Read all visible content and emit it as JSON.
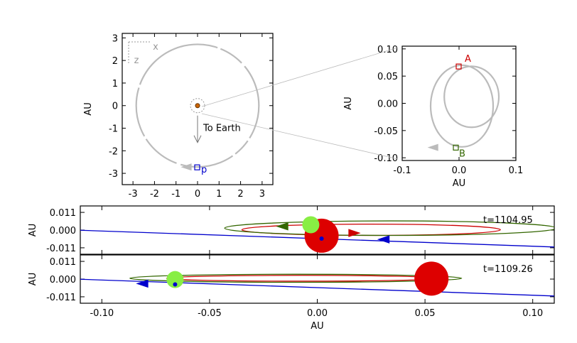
{
  "chart_data": [
    {
      "id": "orbit-wide",
      "type": "scatter",
      "xlabel": "",
      "ylabel": "AU",
      "xlim": [
        -3.5,
        3.5
      ],
      "ylim": [
        -3.5,
        3.2
      ],
      "xticks": [
        "-3",
        "-2",
        "-1",
        "0",
        "1",
        "2",
        "3"
      ],
      "yticks": [
        "3",
        "2",
        "1",
        "0",
        "-1",
        "-2",
        "-3"
      ],
      "axes_indicator": {
        "x": "x",
        "z": "z"
      },
      "orbit": {
        "radius_au": 2.85,
        "color": "#bbbbbb",
        "gap_start_deg": 25,
        "gap_end_deg": 62
      },
      "earth_arrow_label": "To Earth",
      "point": {
        "label": "p",
        "x": 0.0,
        "y": -2.75,
        "color": "#0000cc"
      }
    },
    {
      "id": "orbit-zoom",
      "type": "scatter",
      "xlabel": "AU",
      "ylabel": "AU",
      "xlim": [
        -0.1,
        0.1
      ],
      "ylim": [
        -0.105,
        0.105
      ],
      "xticks": [
        "-0.1",
        "0.0",
        "0.1"
      ],
      "yticks": [
        "0.10",
        "0.05",
        "0.00",
        "-0.05",
        "-0.10"
      ],
      "orbits": [
        {
          "cx": 0.005,
          "cy": -0.005,
          "rx": 0.055,
          "ry": 0.075,
          "color": "#bbbbbb"
        },
        {
          "cx": 0.022,
          "cy": 0.012,
          "rx": 0.048,
          "ry": 0.056,
          "color": "#bbbbbb"
        }
      ],
      "points": [
        {
          "label": "A",
          "x": 0.0,
          "y": 0.067,
          "color": "#cc0000"
        },
        {
          "label": "B",
          "x": -0.005,
          "y": -0.082,
          "color": "#336600"
        }
      ]
    },
    {
      "id": "timeline-1",
      "type": "line",
      "xlabel": "",
      "ylabel": "AU",
      "xlim": [
        -0.11,
        0.11
      ],
      "ylim": [
        -0.015,
        0.015
      ],
      "yticks": [
        "0.011",
        "0.000",
        "-0.011"
      ],
      "time_label": "t=1104.95",
      "series": [
        {
          "x": [
            -0.11,
            0.11
          ],
          "y": [
            -0.0001,
            -0.0105
          ],
          "color": "#0000cc"
        }
      ],
      "ellipses": [
        {
          "cx": 0.025,
          "cy": 0.0002,
          "rx": 0.06,
          "ry": 0.0035,
          "color": "#cc0000"
        },
        {
          "cx": 0.034,
          "cy": 0.0012,
          "rx": 0.077,
          "ry": 0.0045,
          "color": "#336600"
        }
      ],
      "bodies": [
        {
          "x": 0.002,
          "y": -0.0035,
          "size": 1.0,
          "color": "#dd0000"
        },
        {
          "x": -0.003,
          "y": 0.0033,
          "size": 0.5,
          "color": "#88ee44"
        }
      ],
      "markers": [
        {
          "x": 0.002,
          "y": -0.0053,
          "color": "#0000cc"
        }
      ],
      "arrows": [
        {
          "x": -0.016,
          "y": 0.0023,
          "dir": "left",
          "color": "#336600"
        },
        {
          "x": 0.017,
          "y": -0.0018,
          "dir": "right",
          "color": "#cc0000"
        },
        {
          "x": 0.031,
          "y": -0.0058,
          "dir": "left",
          "color": "#0000cc"
        }
      ]
    },
    {
      "id": "timeline-2",
      "type": "line",
      "xlabel": "AU",
      "ylabel": "AU",
      "xlim": [
        -0.11,
        0.11
      ],
      "ylim": [
        -0.015,
        0.015
      ],
      "xticks": [
        "-0.10",
        "-0.05",
        "0.00",
        "0.05",
        "0.10"
      ],
      "yticks": [
        "0.011",
        "0.000",
        "-0.011"
      ],
      "time_label": "t=1109.26",
      "series": [
        {
          "x": [
            -0.11,
            0.11
          ],
          "y": [
            -0.0001,
            -0.0105
          ],
          "color": "#0000cc"
        }
      ],
      "ellipses": [
        {
          "cx": -0.007,
          "cy": 0.0005,
          "rx": 0.063,
          "ry": 0.0018,
          "color": "#cc0000"
        },
        {
          "cx": -0.01,
          "cy": 0.0005,
          "rx": 0.077,
          "ry": 0.0025,
          "color": "#336600"
        }
      ],
      "bodies": [
        {
          "x": 0.053,
          "y": 0.0003,
          "size": 1.0,
          "color": "#dd0000"
        },
        {
          "x": -0.066,
          "y": -0.0003,
          "size": 0.5,
          "color": "#88ee44"
        }
      ],
      "markers": [
        {
          "x": -0.066,
          "y": -0.0033,
          "color": "#0000cc"
        }
      ],
      "arrows": [
        {
          "x": -0.081,
          "y": -0.0028,
          "dir": "left",
          "color": "#0000cc"
        }
      ]
    }
  ]
}
